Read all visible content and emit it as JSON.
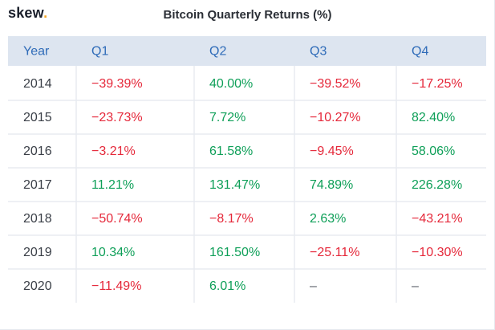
{
  "brand": {
    "logo_text": "skew",
    "logo_dot": ".",
    "logo_dot_color": "#f5a623"
  },
  "colors": {
    "positive": "#0e9f58",
    "negative": "#e5283a",
    "neutral": "#555a63",
    "year": "#3a3f47",
    "header_bg": "#dde5f0",
    "header_text": "#2e6bb8",
    "row_separator": "#e8ebf0",
    "column_separator": "#ffffff"
  },
  "chart_data": {
    "type": "table",
    "title": "Bitcoin Quarterly Returns (%)",
    "columns": [
      "Year",
      "Q1",
      "Q2",
      "Q3",
      "Q4"
    ],
    "rows": [
      {
        "year": "2014",
        "values": [
          "−39.39%",
          "40.00%",
          "−39.52%",
          "−17.25%"
        ],
        "signs": [
          "neg",
          "pos",
          "neg",
          "neg"
        ]
      },
      {
        "year": "2015",
        "values": [
          "−23.73%",
          "7.72%",
          "−10.27%",
          "82.40%"
        ],
        "signs": [
          "neg",
          "pos",
          "neg",
          "pos"
        ]
      },
      {
        "year": "2016",
        "values": [
          "−3.21%",
          "61.58%",
          "−9.45%",
          "58.06%"
        ],
        "signs": [
          "neg",
          "pos",
          "neg",
          "pos"
        ]
      },
      {
        "year": "2017",
        "values": [
          "11.21%",
          "131.47%",
          "74.89%",
          "226.28%"
        ],
        "signs": [
          "pos",
          "pos",
          "pos",
          "pos"
        ]
      },
      {
        "year": "2018",
        "values": [
          "−50.74%",
          "−8.17%",
          "2.63%",
          "−43.21%"
        ],
        "signs": [
          "neg",
          "neg",
          "pos",
          "neg"
        ]
      },
      {
        "year": "2019",
        "values": [
          "10.34%",
          "161.50%",
          "−25.11%",
          "−10.30%"
        ],
        "signs": [
          "pos",
          "pos",
          "neg",
          "neg"
        ]
      },
      {
        "year": "2020",
        "values": [
          "−11.49%",
          "6.01%",
          "–",
          "–"
        ],
        "signs": [
          "neg",
          "pos",
          "none",
          "none"
        ]
      }
    ]
  }
}
